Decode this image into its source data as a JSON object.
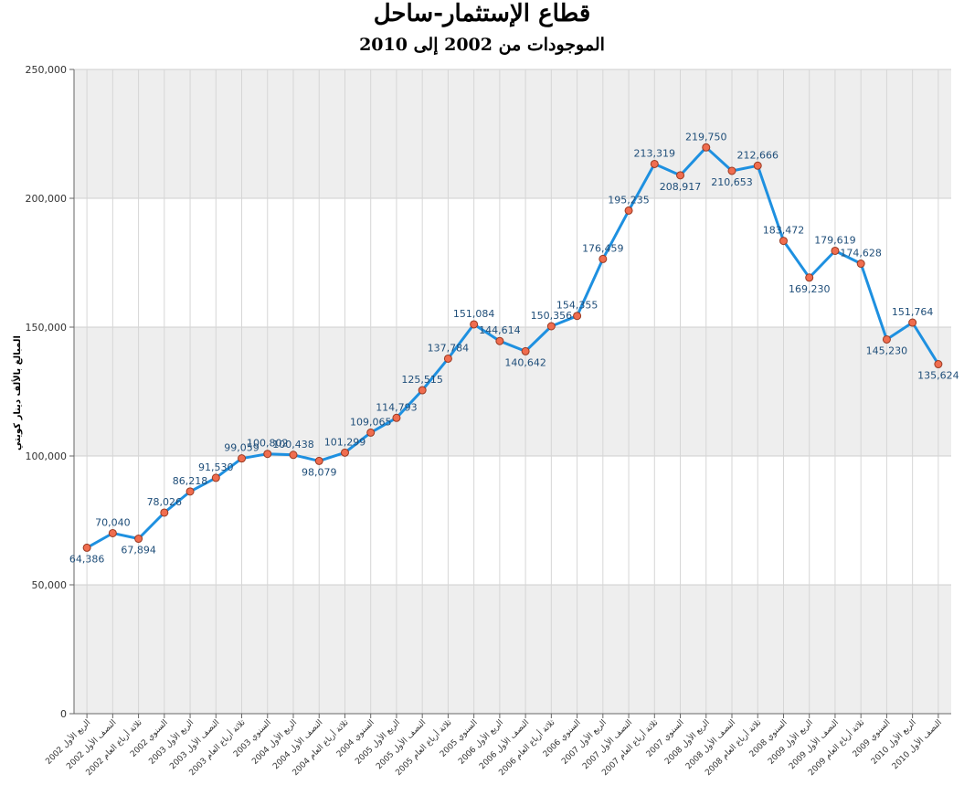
{
  "chart_data": {
    "type": "line",
    "title": "قطاع الإستثمار-ساحل",
    "subtitle": "الموجودات من 2002 إلى 2010",
    "ylabel": "المبالغ بالألف دينار كويتي",
    "xlabel": "",
    "ylim": [
      0,
      250000
    ],
    "yticks": [
      "0",
      "50,000",
      "100,000",
      "150,000",
      "200,000",
      "250,000"
    ],
    "grid": true,
    "line_color": "#1e90e0",
    "marker_color": "#f06d4f",
    "band_color": "#eeeeee",
    "categories": [
      "الربع الأول 2002",
      "النصف الأول 2002",
      "ثلاثة أرباع العام 2002",
      "السنوي 2002",
      "الربع الأول 2003",
      "النصف الأول 2003",
      "ثلاثة أرباع العام 2003",
      "السنوي 2003",
      "الربع الأول 2004",
      "النصف الأول 2004",
      "ثلاثة أرباع العام 2004",
      "السنوي 2004",
      "الربع الأول 2005",
      "النصف الأول 2005",
      "ثلاثة أرباع العام 2005",
      "السنوي 2005",
      "الربع الأول 2006",
      "النصف الأول 2006",
      "ثلاثة أرباع العام 2006",
      "السنوي 2006",
      "الربع الأول 2007",
      "النصف الأول 2007",
      "ثلاثة أرباع العام 2007",
      "السنوي 2007",
      "الربع الأول 2008",
      "النصف الأول 2008",
      "ثلاثة أرباع العام 2008",
      "السنوي 2008",
      "الربع الأول 2009",
      "النصف الأول 2009",
      "ثلاثة أرباع العام 2009",
      "السنوي 2009",
      "الربع الأول 2010",
      "النصف الأول 2010"
    ],
    "values": [
      64386,
      70040,
      67894,
      78026,
      86218,
      91530,
      99059,
      100802,
      100438,
      98079,
      101299,
      109065,
      114793,
      125515,
      137784,
      151084,
      144614,
      140642,
      150356,
      154355,
      176459,
      195235,
      213319,
      208917,
      219750,
      210653,
      212666,
      183472,
      169230,
      179619,
      174628,
      145230,
      151764,
      135624
    ],
    "value_labels": [
      "64,386",
      "70,040",
      "67,894",
      "78,026",
      "86,218",
      "91,530",
      "99,059",
      "100,802",
      "100,438",
      "98,079",
      "101,299",
      "109,065",
      "114,793",
      "125,515",
      "137,784",
      "151,084",
      "144,614",
      "140,642",
      "150,356",
      "154,355",
      "176,459",
      "195,235",
      "213,319",
      "208,917",
      "219,750",
      "210,653",
      "212,666",
      "183,472",
      "169,230",
      "179,619",
      "174,628",
      "145,230",
      "151,764",
      "135,624"
    ]
  }
}
